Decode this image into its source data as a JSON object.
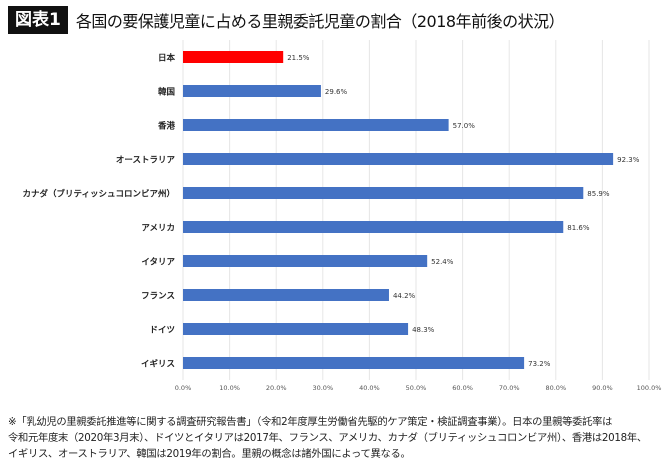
{
  "header": {
    "badge": "図表1",
    "title": "各国の要保護児童に占める里親委託児童の割合（2018年前後の状況）"
  },
  "chart_data": {
    "type": "bar",
    "orientation": "horizontal",
    "categories": [
      "日本",
      "韓国",
      "香港",
      "オーストラリア",
      "カナダ（ブリティッシュコロンビア州）",
      "アメリカ",
      "イタリア",
      "フランス",
      "ドイツ",
      "イギリス"
    ],
    "values": [
      21.5,
      29.6,
      57.0,
      92.3,
      85.9,
      81.6,
      52.4,
      44.2,
      48.3,
      73.2
    ],
    "data_labels": [
      "21.5%",
      "29.6%",
      "57.0%",
      "92.3%",
      "85.9%",
      "81.6%",
      "52.4%",
      "44.2%",
      "48.3%",
      "73.2%"
    ],
    "xlim": [
      0,
      100
    ],
    "x_ticks": [
      "0.0%",
      "10.0%",
      "20.0%",
      "30.0%",
      "40.0%",
      "50.0%",
      "60.0%",
      "70.0%",
      "80.0%",
      "90.0%",
      "100.0%"
    ],
    "grid": true,
    "colors": {
      "highlight": "#ff0000",
      "default": "#4472c4"
    },
    "highlight_index": 0
  },
  "footnote": {
    "lines": [
      "※「乳幼児の里親委託推進等に関する調査研究報告書」（令和2年度厚生労働省先駆的ケア策定・検証調査事業）。日本の里親等委託率は",
      "令和元年度末（2020年3月末）、ドイツとイタリアは2017年、フランス、アメリカ、カナダ（ブリティッシュコロンビア州）、香港は2018年、",
      "イギリス、オーストラリア、韓国は2019年の割合。里親の概念は諸外国によって異なる。"
    ]
  }
}
